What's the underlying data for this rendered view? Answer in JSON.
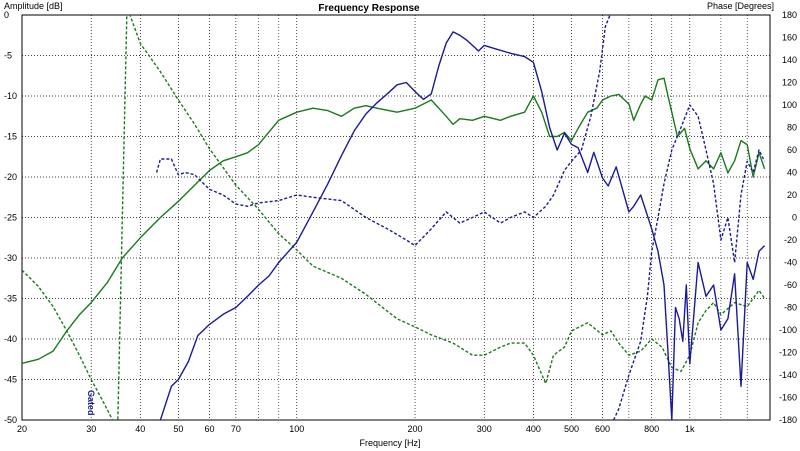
{
  "chart_data": {
    "type": "line",
    "title": "Frequency Response",
    "xlabel": "Frequency [Hz]",
    "ylabel_left": "Amplitude [dB]",
    "ylabel_right": "Phase [Degrees]",
    "x_scale": "log",
    "xlim": [
      20,
      1600
    ],
    "ylim_left": [
      -50,
      0
    ],
    "ylim_right": [
      -180,
      180
    ],
    "grid": true,
    "x_ticks": [
      {
        "value": 20,
        "label": "20"
      },
      {
        "value": 30,
        "label": "30"
      },
      {
        "value": 40,
        "label": "40"
      },
      {
        "value": 50,
        "label": "50"
      },
      {
        "value": 60,
        "label": "60"
      },
      {
        "value": 70,
        "label": "70"
      },
      {
        "value": 100,
        "label": "100"
      },
      {
        "value": 200,
        "label": "200"
      },
      {
        "value": 300,
        "label": "300"
      },
      {
        "value": 400,
        "label": "400"
      },
      {
        "value": 500,
        "label": "500"
      },
      {
        "value": 600,
        "label": "600"
      },
      {
        "value": 800,
        "label": "800"
      },
      {
        "value": 1000,
        "label": "1k"
      }
    ],
    "x_minor": [
      80,
      90,
      700,
      900,
      1200,
      1400
    ],
    "y_left_ticks": [
      0,
      -5,
      -10,
      -15,
      -20,
      -25,
      -30,
      -35,
      -40,
      -45,
      -50
    ],
    "y_right_ticks": [
      180,
      160,
      140,
      120,
      100,
      80,
      60,
      40,
      20,
      0,
      -20,
      -40,
      -60,
      -80,
      -100,
      -120,
      -140,
      -160,
      -180
    ],
    "annotation": "Gated",
    "series": [
      {
        "color": "#1a7a1a",
        "style": "solid",
        "axis": "left",
        "points": [
          [
            20,
            -43
          ],
          [
            22,
            -42.5
          ],
          [
            24,
            -41.5
          ],
          [
            26,
            -39
          ],
          [
            28,
            -37
          ],
          [
            30,
            -35.5
          ],
          [
            33,
            -33
          ],
          [
            36,
            -30
          ],
          [
            40,
            -27.5
          ],
          [
            45,
            -25
          ],
          [
            50,
            -23
          ],
          [
            55,
            -21
          ],
          [
            60,
            -19.2
          ],
          [
            65,
            -18
          ],
          [
            70,
            -17.5
          ],
          [
            75,
            -17
          ],
          [
            80,
            -16
          ],
          [
            90,
            -13
          ],
          [
            100,
            -12
          ],
          [
            110,
            -11.5
          ],
          [
            120,
            -11.8
          ],
          [
            130,
            -12.5
          ],
          [
            140,
            -11.5
          ],
          [
            150,
            -11.2
          ],
          [
            160,
            -11.5
          ],
          [
            180,
            -12
          ],
          [
            200,
            -11.5
          ],
          [
            220,
            -10.5
          ],
          [
            240,
            -12.5
          ],
          [
            250,
            -13.5
          ],
          [
            260,
            -12.8
          ],
          [
            280,
            -13
          ],
          [
            300,
            -12.5
          ],
          [
            330,
            -13
          ],
          [
            350,
            -12.5
          ],
          [
            380,
            -12
          ],
          [
            400,
            -10
          ],
          [
            420,
            -12
          ],
          [
            440,
            -15
          ],
          [
            460,
            -15
          ],
          [
            480,
            -14.5
          ],
          [
            500,
            -15.5
          ],
          [
            520,
            -14
          ],
          [
            550,
            -12
          ],
          [
            580,
            -11.5
          ],
          [
            600,
            -10.5
          ],
          [
            630,
            -10
          ],
          [
            660,
            -9.8
          ],
          [
            700,
            -11
          ],
          [
            720,
            -13
          ],
          [
            750,
            -11
          ],
          [
            770,
            -10
          ],
          [
            800,
            -10.5
          ],
          [
            830,
            -8
          ],
          [
            860,
            -7.8
          ],
          [
            880,
            -10
          ],
          [
            900,
            -12
          ],
          [
            930,
            -15
          ],
          [
            970,
            -14
          ],
          [
            1000,
            -16.5
          ],
          [
            1050,
            -19
          ],
          [
            1100,
            -18
          ],
          [
            1150,
            -19
          ],
          [
            1200,
            -17
          ],
          [
            1250,
            -19.5
          ],
          [
            1300,
            -18
          ],
          [
            1350,
            -15.5
          ],
          [
            1400,
            -16
          ],
          [
            1450,
            -20
          ],
          [
            1500,
            -17
          ],
          [
            1550,
            -19
          ]
        ]
      },
      {
        "color": "#1a7a1a",
        "style": "dashed",
        "axis": "left",
        "points": [
          [
            20,
            -31.5
          ],
          [
            22,
            -33.5
          ],
          [
            24,
            -36
          ],
          [
            26,
            -39
          ],
          [
            28,
            -42
          ],
          [
            30,
            -45
          ],
          [
            32,
            -47.5
          ],
          [
            34,
            -50
          ],
          [
            35,
            -52
          ],
          [
            37,
            1
          ],
          [
            40,
            -3.5
          ],
          [
            45,
            -7
          ],
          [
            50,
            -10.5
          ],
          [
            55,
            -13.5
          ],
          [
            60,
            -16.5
          ],
          [
            70,
            -21
          ],
          [
            80,
            -24
          ],
          [
            90,
            -27
          ],
          [
            100,
            -29
          ],
          [
            110,
            -31
          ],
          [
            130,
            -32.5
          ],
          [
            150,
            -34.5
          ],
          [
            180,
            -37.5
          ],
          [
            200,
            -38.5
          ],
          [
            220,
            -39.5
          ],
          [
            250,
            -40.5
          ],
          [
            280,
            -42
          ],
          [
            300,
            -42
          ],
          [
            330,
            -41
          ],
          [
            350,
            -40.5
          ],
          [
            380,
            -40.5
          ],
          [
            400,
            -42
          ],
          [
            430,
            -45.5
          ],
          [
            450,
            -42
          ],
          [
            480,
            -41
          ],
          [
            500,
            -39
          ],
          [
            550,
            -38
          ],
          [
            600,
            -39.5
          ],
          [
            630,
            -39
          ],
          [
            660,
            -40.5
          ],
          [
            700,
            -42
          ],
          [
            750,
            -41.5
          ],
          [
            800,
            -40
          ],
          [
            850,
            -41
          ],
          [
            900,
            -43.5
          ],
          [
            950,
            -44
          ],
          [
            1000,
            -42
          ],
          [
            1050,
            -38
          ],
          [
            1100,
            -36.5
          ],
          [
            1150,
            -35.5
          ],
          [
            1200,
            -37
          ],
          [
            1300,
            -35.5
          ],
          [
            1400,
            -36
          ],
          [
            1500,
            -34
          ],
          [
            1550,
            -35
          ]
        ]
      },
      {
        "color": "#1a1a96",
        "style": "solid",
        "axis": "right",
        "points": [
          [
            45,
            -180
          ],
          [
            48,
            -150
          ],
          [
            50,
            -144
          ],
          [
            53,
            -128
          ],
          [
            56,
            -105
          ],
          [
            60,
            -95
          ],
          [
            65,
            -86
          ],
          [
            70,
            -80
          ],
          [
            75,
            -70
          ],
          [
            80,
            -60
          ],
          [
            85,
            -52
          ],
          [
            90,
            -40
          ],
          [
            100,
            -22
          ],
          [
            110,
            5
          ],
          [
            120,
            30
          ],
          [
            130,
            55
          ],
          [
            140,
            77
          ],
          [
            150,
            92
          ],
          [
            160,
            102
          ],
          [
            170,
            110
          ],
          [
            180,
            118
          ],
          [
            190,
            120
          ],
          [
            200,
            112
          ],
          [
            210,
            105
          ],
          [
            220,
            110
          ],
          [
            230,
            135
          ],
          [
            240,
            155
          ],
          [
            250,
            165
          ],
          [
            260,
            162
          ],
          [
            270,
            158
          ],
          [
            280,
            153
          ],
          [
            290,
            148
          ],
          [
            300,
            153
          ],
          [
            320,
            150
          ],
          [
            350,
            146
          ],
          [
            380,
            143
          ],
          [
            400,
            138
          ],
          [
            420,
            112
          ],
          [
            440,
            80
          ],
          [
            460,
            60
          ],
          [
            480,
            75
          ],
          [
            500,
            65
          ],
          [
            520,
            62
          ],
          [
            550,
            40
          ],
          [
            570,
            58
          ],
          [
            600,
            35
          ],
          [
            620,
            28
          ],
          [
            650,
            45
          ],
          [
            700,
            5
          ],
          [
            720,
            10
          ],
          [
            750,
            20
          ],
          [
            800,
            -10
          ],
          [
            830,
            -30
          ],
          [
            860,
            -60
          ],
          [
            880,
            -120
          ],
          [
            900,
            -180
          ],
          [
            920,
            -80
          ],
          [
            940,
            -90
          ],
          [
            960,
            -110
          ],
          [
            980,
            -60
          ],
          [
            1000,
            -130
          ],
          [
            1050,
            -40
          ],
          [
            1100,
            -70
          ],
          [
            1150,
            -60
          ],
          [
            1200,
            -100
          ],
          [
            1250,
            -90
          ],
          [
            1300,
            -50
          ],
          [
            1350,
            -150
          ],
          [
            1400,
            -40
          ],
          [
            1450,
            -55
          ],
          [
            1500,
            -30
          ],
          [
            1550,
            -25
          ]
        ]
      },
      {
        "color": "#1a1a96",
        "style": "dashed",
        "axis": "right",
        "points": [
          [
            44,
            40
          ],
          [
            45,
            52
          ],
          [
            48,
            52
          ],
          [
            50,
            38
          ],
          [
            52,
            40
          ],
          [
            55,
            38
          ],
          [
            60,
            25
          ],
          [
            65,
            20
          ],
          [
            70,
            12
          ],
          [
            75,
            10
          ],
          [
            80,
            13
          ],
          [
            90,
            15
          ],
          [
            100,
            20
          ],
          [
            110,
            18
          ],
          [
            130,
            15
          ],
          [
            150,
            0
          ],
          [
            170,
            -10
          ],
          [
            190,
            -20
          ],
          [
            200,
            -25
          ],
          [
            220,
            -10
          ],
          [
            240,
            5
          ],
          [
            260,
            -5
          ],
          [
            280,
            0
          ],
          [
            300,
            5
          ],
          [
            330,
            -5
          ],
          [
            350,
            0
          ],
          [
            380,
            5
          ],
          [
            400,
            0
          ],
          [
            430,
            10
          ],
          [
            450,
            20
          ],
          [
            480,
            42
          ],
          [
            500,
            50
          ],
          [
            530,
            60
          ],
          [
            560,
            90
          ],
          [
            590,
            130
          ],
          [
            610,
            170
          ],
          [
            630,
            182
          ],
          [
            640,
            -180
          ],
          [
            660,
            -170
          ],
          [
            700,
            -140
          ],
          [
            750,
            -110
          ],
          [
            780,
            -70
          ],
          [
            800,
            -30
          ],
          [
            830,
            0
          ],
          [
            860,
            30
          ],
          [
            900,
            60
          ],
          [
            950,
            80
          ],
          [
            1000,
            100
          ],
          [
            1050,
            90
          ],
          [
            1100,
            60
          ],
          [
            1150,
            30
          ],
          [
            1200,
            -20
          ],
          [
            1250,
            0
          ],
          [
            1300,
            -40
          ],
          [
            1350,
            20
          ],
          [
            1400,
            50
          ],
          [
            1450,
            40
          ],
          [
            1500,
            60
          ],
          [
            1550,
            50
          ]
        ]
      }
    ]
  }
}
